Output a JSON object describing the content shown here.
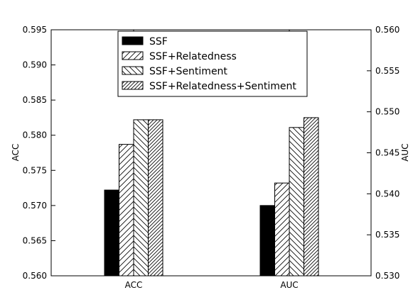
{
  "chart_data": {
    "type": "bar",
    "categories": [
      "ACC",
      "AUC"
    ],
    "series": [
      {
        "name": "SSF",
        "values": [
          0.5722,
          0.57
        ],
        "pattern": "solid"
      },
      {
        "name": "SSF+Relatedness",
        "values": [
          0.5787,
          0.5732
        ],
        "pattern": "slash"
      },
      {
        "name": "SSF+Sentiment",
        "values": [
          0.5822,
          0.5811
        ],
        "pattern": "backslash"
      },
      {
        "name": "SSF+Relatedness+Sentiment",
        "values": [
          0.5822,
          0.5825
        ],
        "pattern": "slash-dense"
      }
    ],
    "ylabel_left": "ACC",
    "ylabel_right": "AUC",
    "ylim_left": [
      0.56,
      0.595
    ],
    "ylim_right": [
      0.53,
      0.56
    ],
    "yticks_left": [
      "0.560",
      "0.565",
      "0.570",
      "0.575",
      "0.580",
      "0.585",
      "0.590",
      "0.595"
    ],
    "yticks_right": [
      "0.530",
      "0.535",
      "0.540",
      "0.545",
      "0.550",
      "0.555",
      "0.560"
    ],
    "legend_position": "top-center",
    "grid": false,
    "colors": {
      "bar_fill_solid": "#000000",
      "bar_fill_hatched": "#ffffff",
      "edge": "#000000"
    }
  }
}
